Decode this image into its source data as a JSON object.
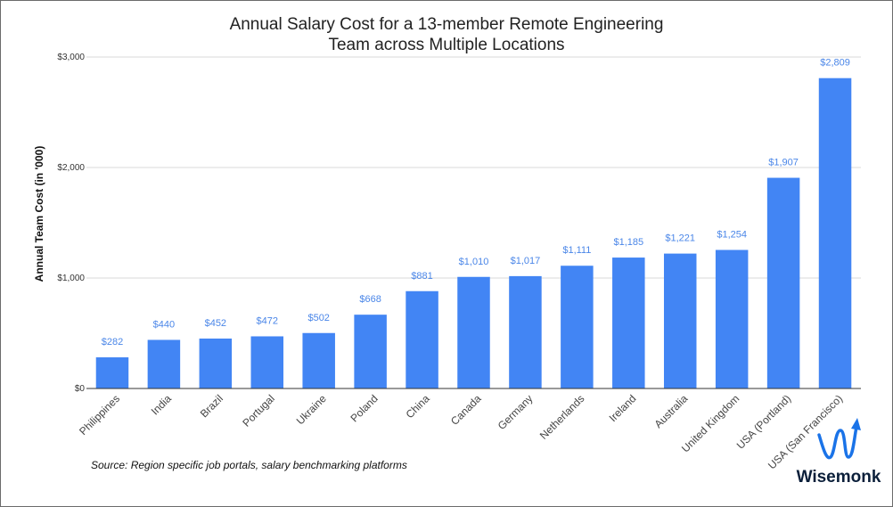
{
  "chart_data": {
    "type": "bar",
    "title": "Annual Salary Cost for a 13-member Remote Engineering Team across Multiple Locations",
    "title_lines": [
      "Annual Salary Cost for a 13-member Remote Engineering",
      "Team across Multiple Locations"
    ],
    "ylabel": "Annual Team Cost (in '000)",
    "xlabel": "",
    "ylim": [
      0,
      3000
    ],
    "yticks": [
      0,
      1000,
      2000,
      3000
    ],
    "ytick_labels": [
      "$0",
      "$1,000",
      "$2,000",
      "$3,000"
    ],
    "grid": true,
    "categories": [
      "Philippines",
      "India",
      "Brazil",
      "Portugal",
      "Ukraine",
      "Poland",
      "China",
      "Canada",
      "Germany",
      "Netherlands",
      "Ireland",
      "Australia",
      "United Kingdom",
      "USA (Portland)",
      "USA (San Francisco)"
    ],
    "values": [
      282,
      440,
      452,
      472,
      502,
      668,
      881,
      1010,
      1017,
      1111,
      1185,
      1221,
      1254,
      1907,
      2809
    ],
    "value_labels": [
      "$282",
      "$440",
      "$452",
      "$472",
      "$502",
      "$668",
      "$881",
      "$1,010",
      "$1,017",
      "$1,111",
      "$1,185",
      "$1,221",
      "$1,254",
      "$1,907",
      "$2,809"
    ],
    "bar_color": "#4285f4",
    "label_color": "#4a86e8"
  },
  "source_note": "Source: Region specific job portals, salary benchmarking platforms",
  "brand": {
    "name": "Wisemonk",
    "logo_icon": "wisemonk-logo-icon",
    "logo_color": "#1a73e8"
  }
}
